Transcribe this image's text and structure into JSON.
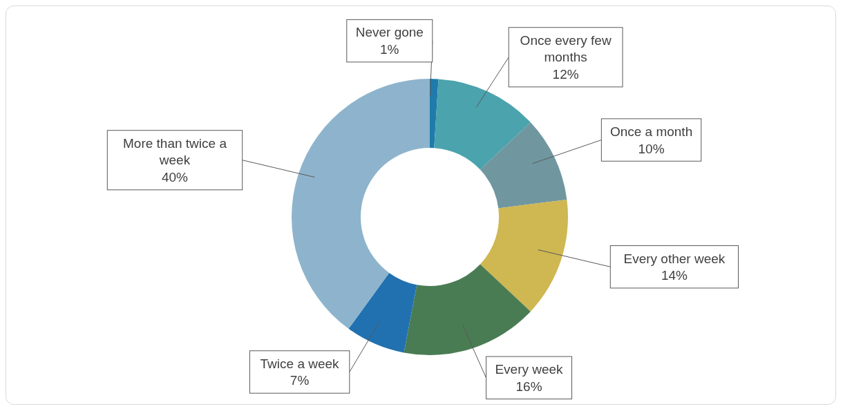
{
  "chart_data": {
    "type": "donut",
    "categories": [
      "Never gone",
      "Once every few months",
      "Once a month",
      "Every other week",
      "Every week",
      "Twice a week",
      "More than twice a week"
    ],
    "values": [
      1,
      12,
      10,
      14,
      16,
      7,
      40
    ],
    "value_labels": [
      "1%",
      "12%",
      "10%",
      "14%",
      "16%",
      "7%",
      "40%"
    ],
    "colors": [
      "#1f7bab",
      "#4ba3ad",
      "#7097a0",
      "#cfb752",
      "#4a7c54",
      "#2171b0",
      "#8db4cc"
    ]
  }
}
